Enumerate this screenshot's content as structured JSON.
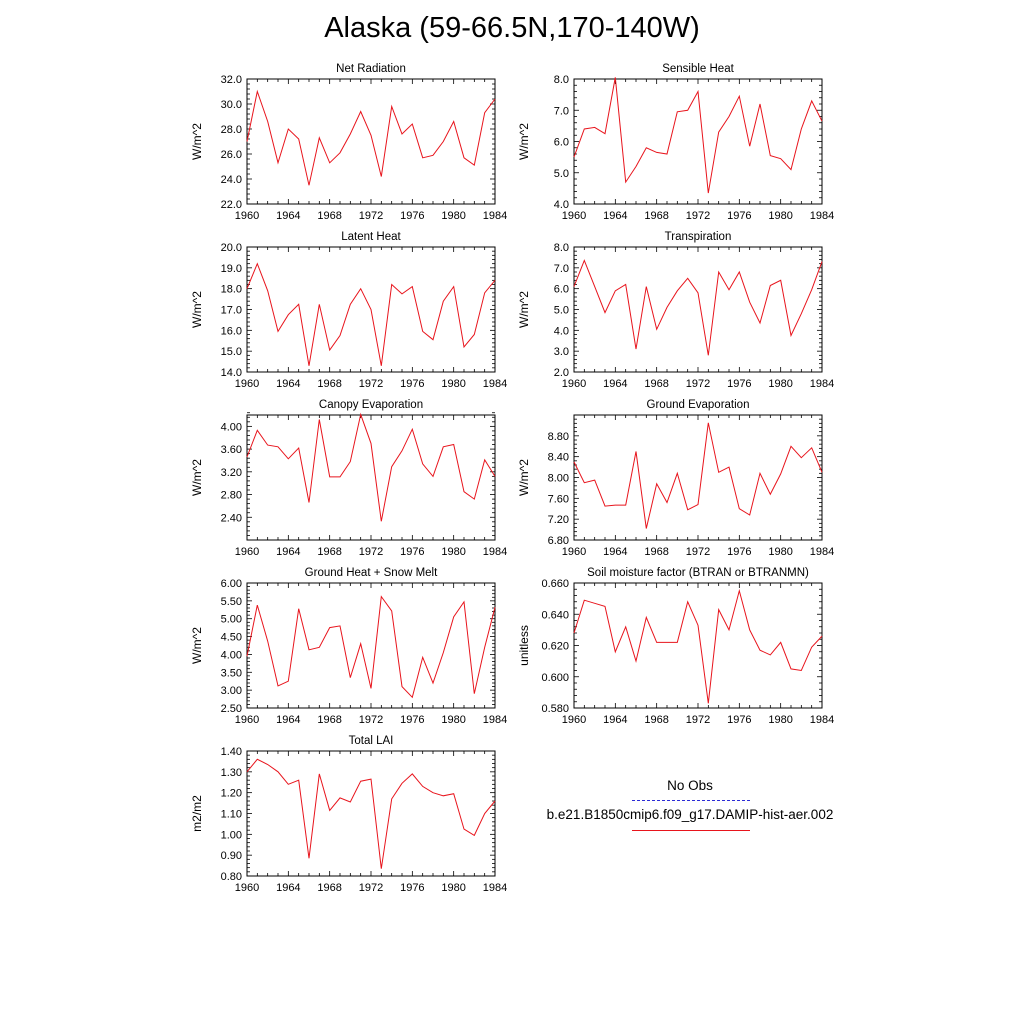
{
  "title": "Alaska (59-66.5N,170-140W)",
  "colors": {
    "model_line": "#e8141c",
    "obs_line": "#2b2bd6",
    "axis": "#000000"
  },
  "legend": {
    "obs_label": "No Obs",
    "model_label": "b.e21.B1850cmip6.f09_g17.DAMIP-hist-aer.002"
  },
  "chart_data": [
    {
      "type": "line",
      "title": "Net Radiation",
      "ylabel": "W/m^2",
      "x": [
        1960,
        1961,
        1962,
        1963,
        1964,
        1965,
        1966,
        1967,
        1968,
        1969,
        1970,
        1971,
        1972,
        1973,
        1974,
        1975,
        1976,
        1977,
        1978,
        1979,
        1980,
        1981,
        1982,
        1983,
        1984
      ],
      "xticks": [
        1960,
        1964,
        1968,
        1972,
        1976,
        1980,
        1984
      ],
      "xlim": [
        1960,
        1984
      ],
      "ylim": [
        22.0,
        32.0
      ],
      "yticks": [
        22.0,
        24.0,
        26.0,
        28.0,
        30.0,
        32.0
      ],
      "ytick_labels": [
        "22.0",
        "24.0",
        "26.0",
        "28.0",
        "30.0",
        "32.0"
      ],
      "series": [
        {
          "values": [
            27.0,
            31.0,
            28.6,
            25.3,
            28.0,
            27.2,
            23.5,
            27.3,
            25.3,
            26.1,
            27.6,
            29.4,
            27.5,
            24.2,
            29.8,
            27.6,
            28.4,
            25.7,
            25.9,
            27.0,
            28.6,
            25.7,
            25.1,
            29.3,
            30.4
          ]
        }
      ]
    },
    {
      "type": "line",
      "title": "Sensible Heat",
      "ylabel": "W/m^2",
      "x": [
        1960,
        1961,
        1962,
        1963,
        1964,
        1965,
        1966,
        1967,
        1968,
        1969,
        1970,
        1971,
        1972,
        1973,
        1974,
        1975,
        1976,
        1977,
        1978,
        1979,
        1980,
        1981,
        1982,
        1983,
        1984
      ],
      "xticks": [
        1960,
        1964,
        1968,
        1972,
        1976,
        1980,
        1984
      ],
      "xlim": [
        1960,
        1984
      ],
      "ylim": [
        4.0,
        8.0
      ],
      "yticks": [
        4.0,
        5.0,
        6.0,
        7.0,
        8.0
      ],
      "ytick_labels": [
        "4.0",
        "5.0",
        "6.0",
        "7.0",
        "8.0"
      ],
      "series": [
        {
          "values": [
            5.5,
            6.4,
            6.45,
            6.25,
            8.05,
            4.7,
            5.2,
            5.8,
            5.65,
            5.6,
            6.95,
            7.0,
            7.6,
            4.35,
            6.3,
            6.8,
            7.45,
            5.85,
            7.2,
            5.55,
            5.45,
            5.1,
            6.4,
            7.3,
            6.65
          ]
        }
      ]
    },
    {
      "type": "line",
      "title": "Latent Heat",
      "ylabel": "W/m^2",
      "x": [
        1960,
        1961,
        1962,
        1963,
        1964,
        1965,
        1966,
        1967,
        1968,
        1969,
        1970,
        1971,
        1972,
        1973,
        1974,
        1975,
        1976,
        1977,
        1978,
        1979,
        1980,
        1981,
        1982,
        1983,
        1984
      ],
      "xticks": [
        1960,
        1964,
        1968,
        1972,
        1976,
        1980,
        1984
      ],
      "xlim": [
        1960,
        1984
      ],
      "ylim": [
        14.0,
        20.0
      ],
      "yticks": [
        14.0,
        15.0,
        16.0,
        17.0,
        18.0,
        19.0,
        20.0
      ],
      "ytick_labels": [
        "14.0",
        "15.0",
        "16.0",
        "17.0",
        "18.0",
        "19.0",
        "20.0"
      ],
      "series": [
        {
          "values": [
            18.0,
            19.2,
            17.9,
            15.95,
            16.75,
            17.25,
            14.3,
            17.25,
            15.05,
            15.75,
            17.25,
            18.0,
            17.0,
            14.3,
            18.2,
            17.75,
            18.1,
            15.95,
            15.55,
            17.4,
            18.1,
            15.2,
            15.8,
            17.8,
            18.4
          ]
        }
      ]
    },
    {
      "type": "line",
      "title": "Transpiration",
      "ylabel": "W/m^2",
      "x": [
        1960,
        1961,
        1962,
        1963,
        1964,
        1965,
        1966,
        1967,
        1968,
        1969,
        1970,
        1971,
        1972,
        1973,
        1974,
        1975,
        1976,
        1977,
        1978,
        1979,
        1980,
        1981,
        1982,
        1983,
        1984
      ],
      "xticks": [
        1960,
        1964,
        1968,
        1972,
        1976,
        1980,
        1984
      ],
      "xlim": [
        1960,
        1984
      ],
      "ylim": [
        2.0,
        8.0
      ],
      "yticks": [
        2.0,
        3.0,
        4.0,
        5.0,
        6.0,
        7.0,
        8.0
      ],
      "ytick_labels": [
        "2.0",
        "3.0",
        "4.0",
        "5.0",
        "6.0",
        "7.0",
        "8.0"
      ],
      "series": [
        {
          "values": [
            6.1,
            7.35,
            6.1,
            4.85,
            5.9,
            6.2,
            3.1,
            6.1,
            4.05,
            5.1,
            5.9,
            6.5,
            5.8,
            2.8,
            6.8,
            5.95,
            6.8,
            5.35,
            4.35,
            6.15,
            6.4,
            3.75,
            4.8,
            5.95,
            7.3
          ]
        }
      ]
    },
    {
      "type": "line",
      "title": "Canopy Evaporation",
      "ylabel": "W/m^2",
      "x": [
        1960,
        1961,
        1962,
        1963,
        1964,
        1965,
        1966,
        1967,
        1968,
        1969,
        1970,
        1971,
        1972,
        1973,
        1974,
        1975,
        1976,
        1977,
        1978,
        1979,
        1980,
        1981,
        1982,
        1983,
        1984
      ],
      "xticks": [
        1960,
        1964,
        1968,
        1972,
        1976,
        1980,
        1984
      ],
      "xlim": [
        1960,
        1984
      ],
      "ylim": [
        2.0,
        4.2
      ],
      "yticks": [
        2.4,
        2.8,
        3.2,
        3.6,
        4.0
      ],
      "ytick_labels": [
        "2.40",
        "2.80",
        "3.20",
        "3.60",
        "4.00"
      ],
      "series": [
        {
          "values": [
            3.46,
            3.93,
            3.67,
            3.64,
            3.43,
            3.62,
            2.66,
            4.12,
            3.11,
            3.11,
            3.38,
            4.21,
            3.7,
            2.33,
            3.29,
            3.57,
            3.95,
            3.34,
            3.12,
            3.64,
            3.68,
            2.85,
            2.72,
            3.41,
            3.12
          ]
        }
      ]
    },
    {
      "type": "line",
      "title": "Ground Evaporation",
      "ylabel": "W/m^2",
      "x": [
        1960,
        1961,
        1962,
        1963,
        1964,
        1965,
        1966,
        1967,
        1968,
        1969,
        1970,
        1971,
        1972,
        1973,
        1974,
        1975,
        1976,
        1977,
        1978,
        1979,
        1980,
        1981,
        1982,
        1983,
        1984
      ],
      "xticks": [
        1960,
        1964,
        1968,
        1972,
        1976,
        1980,
        1984
      ],
      "xlim": [
        1960,
        1984
      ],
      "ylim": [
        6.8,
        9.2
      ],
      "yticks": [
        6.8,
        7.2,
        7.6,
        8.0,
        8.4,
        8.8
      ],
      "ytick_labels": [
        "6.80",
        "7.20",
        "7.60",
        "8.00",
        "8.40",
        "8.80"
      ],
      "series": [
        {
          "values": [
            8.3,
            7.9,
            7.95,
            7.45,
            7.47,
            7.47,
            8.5,
            7.02,
            7.88,
            7.52,
            8.08,
            7.38,
            7.48,
            9.05,
            8.1,
            8.2,
            7.4,
            7.28,
            8.08,
            7.68,
            8.07,
            8.6,
            8.38,
            8.57,
            8.1
          ]
        }
      ]
    },
    {
      "type": "line",
      "title": "Ground Heat + Snow Melt",
      "ylabel": "W/m^2",
      "x": [
        1960,
        1961,
        1962,
        1963,
        1964,
        1965,
        1966,
        1967,
        1968,
        1969,
        1970,
        1971,
        1972,
        1973,
        1974,
        1975,
        1976,
        1977,
        1978,
        1979,
        1980,
        1981,
        1982,
        1983,
        1984
      ],
      "xticks": [
        1960,
        1964,
        1968,
        1972,
        1976,
        1980,
        1984
      ],
      "xlim": [
        1960,
        1984
      ],
      "ylim": [
        2.5,
        6.0
      ],
      "yticks": [
        2.5,
        3.0,
        3.5,
        4.0,
        4.5,
        5.0,
        5.5,
        6.0
      ],
      "ytick_labels": [
        "2.50",
        "3.00",
        "3.50",
        "4.00",
        "4.50",
        "5.00",
        "5.50",
        "6.00"
      ],
      "series": [
        {
          "values": [
            3.95,
            5.38,
            4.37,
            3.12,
            3.25,
            5.28,
            4.13,
            4.2,
            4.75,
            4.8,
            3.35,
            4.3,
            3.05,
            5.62,
            5.22,
            3.1,
            2.8,
            3.92,
            3.2,
            4.05,
            5.05,
            5.47,
            2.9,
            4.2,
            5.32
          ]
        }
      ]
    },
    {
      "type": "line",
      "title": "Soil moisture factor (BTRAN or BTRANMN)",
      "ylabel": "unitless",
      "x": [
        1960,
        1961,
        1962,
        1963,
        1964,
        1965,
        1966,
        1967,
        1968,
        1969,
        1970,
        1971,
        1972,
        1973,
        1974,
        1975,
        1976,
        1977,
        1978,
        1979,
        1980,
        1981,
        1982,
        1983,
        1984
      ],
      "xticks": [
        1960,
        1964,
        1968,
        1972,
        1976,
        1980,
        1984
      ],
      "xlim": [
        1960,
        1984
      ],
      "ylim": [
        0.58,
        0.66
      ],
      "yticks": [
        0.58,
        0.6,
        0.62,
        0.64,
        0.66
      ],
      "ytick_labels": [
        "0.580",
        "0.600",
        "0.620",
        "0.640",
        "0.660"
      ],
      "series": [
        {
          "values": [
            0.628,
            0.649,
            0.647,
            0.645,
            0.616,
            0.632,
            0.61,
            0.638,
            0.622,
            0.622,
            0.622,
            0.648,
            0.633,
            0.583,
            0.643,
            0.63,
            0.655,
            0.63,
            0.617,
            0.614,
            0.622,
            0.605,
            0.604,
            0.619,
            0.626
          ]
        }
      ]
    },
    {
      "type": "line",
      "title": "Total LAI",
      "ylabel": "m2/m2",
      "x": [
        1960,
        1961,
        1962,
        1963,
        1964,
        1965,
        1966,
        1967,
        1968,
        1969,
        1970,
        1971,
        1972,
        1973,
        1974,
        1975,
        1976,
        1977,
        1978,
        1979,
        1980,
        1981,
        1982,
        1983,
        1984
      ],
      "xticks": [
        1960,
        1964,
        1968,
        1972,
        1976,
        1980,
        1984
      ],
      "xlim": [
        1960,
        1984
      ],
      "ylim": [
        0.8,
        1.4
      ],
      "yticks": [
        0.8,
        0.9,
        1.0,
        1.1,
        1.2,
        1.3,
        1.4
      ],
      "ytick_labels": [
        "0.80",
        "0.90",
        "1.00",
        "1.10",
        "1.20",
        "1.30",
        "1.40"
      ],
      "series": [
        {
          "values": [
            1.3,
            1.36,
            1.335,
            1.3,
            1.24,
            1.26,
            0.885,
            1.29,
            1.115,
            1.175,
            1.155,
            1.255,
            1.265,
            0.835,
            1.17,
            1.245,
            1.29,
            1.23,
            1.2,
            1.185,
            1.195,
            1.025,
            0.995,
            1.1,
            1.16
          ]
        }
      ]
    }
  ]
}
